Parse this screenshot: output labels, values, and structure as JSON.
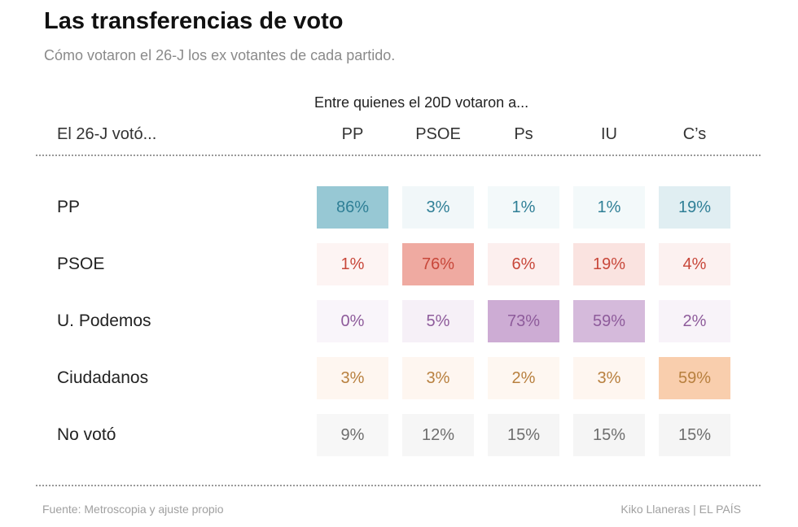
{
  "chart_data": {
    "type": "table",
    "title": "Las transferencias de voto",
    "subtitle": "Cómo votaron el 26-J los ex votantes de cada partido.",
    "column_group_label": "Entre quienes el 20D votaron a...",
    "row_header": "El 26-J votó...",
    "columns": [
      "PP",
      "PSOE",
      "Ps",
      "IU",
      "C’s"
    ],
    "rows": [
      {
        "label": "PP",
        "values": [
          86,
          3,
          1,
          1,
          19
        ],
        "display": [
          "86%",
          "3%",
          "1%",
          "1%",
          "19%"
        ],
        "color": "#4a9fb5",
        "text_color": "#2f7f96"
      },
      {
        "label": "PSOE",
        "values": [
          1,
          76,
          6,
          19,
          4
        ],
        "display": [
          "1%",
          "76%",
          "6%",
          "19%",
          "4%"
        ],
        "color": "#e05a4a",
        "text_color": "#c8473a"
      },
      {
        "label": "U. Podemos",
        "values": [
          0,
          5,
          73,
          59,
          2
        ],
        "display": [
          "0%",
          "5%",
          "73%",
          "59%",
          "2%"
        ],
        "color": "#9b59a8",
        "text_color": "#8e5b9b"
      },
      {
        "label": "Ciudadanos",
        "values": [
          3,
          3,
          2,
          3,
          59
        ],
        "display": [
          "3%",
          "3%",
          "2%",
          "3%",
          "59%"
        ],
        "color": "#f08a3a",
        "text_color": "#b8803f"
      },
      {
        "label": "No votó",
        "values": [
          9,
          12,
          15,
          15,
          15
        ],
        "display": [
          "9%",
          "12%",
          "15%",
          "15%",
          "15%"
        ],
        "color": "#bdbdbd",
        "text_color": "#6e6e6e"
      }
    ]
  },
  "footer": {
    "source": "Fuente: Metroscopia y ajuste propio",
    "credit": "Kiko Llaneras  |  EL PAÍS"
  }
}
